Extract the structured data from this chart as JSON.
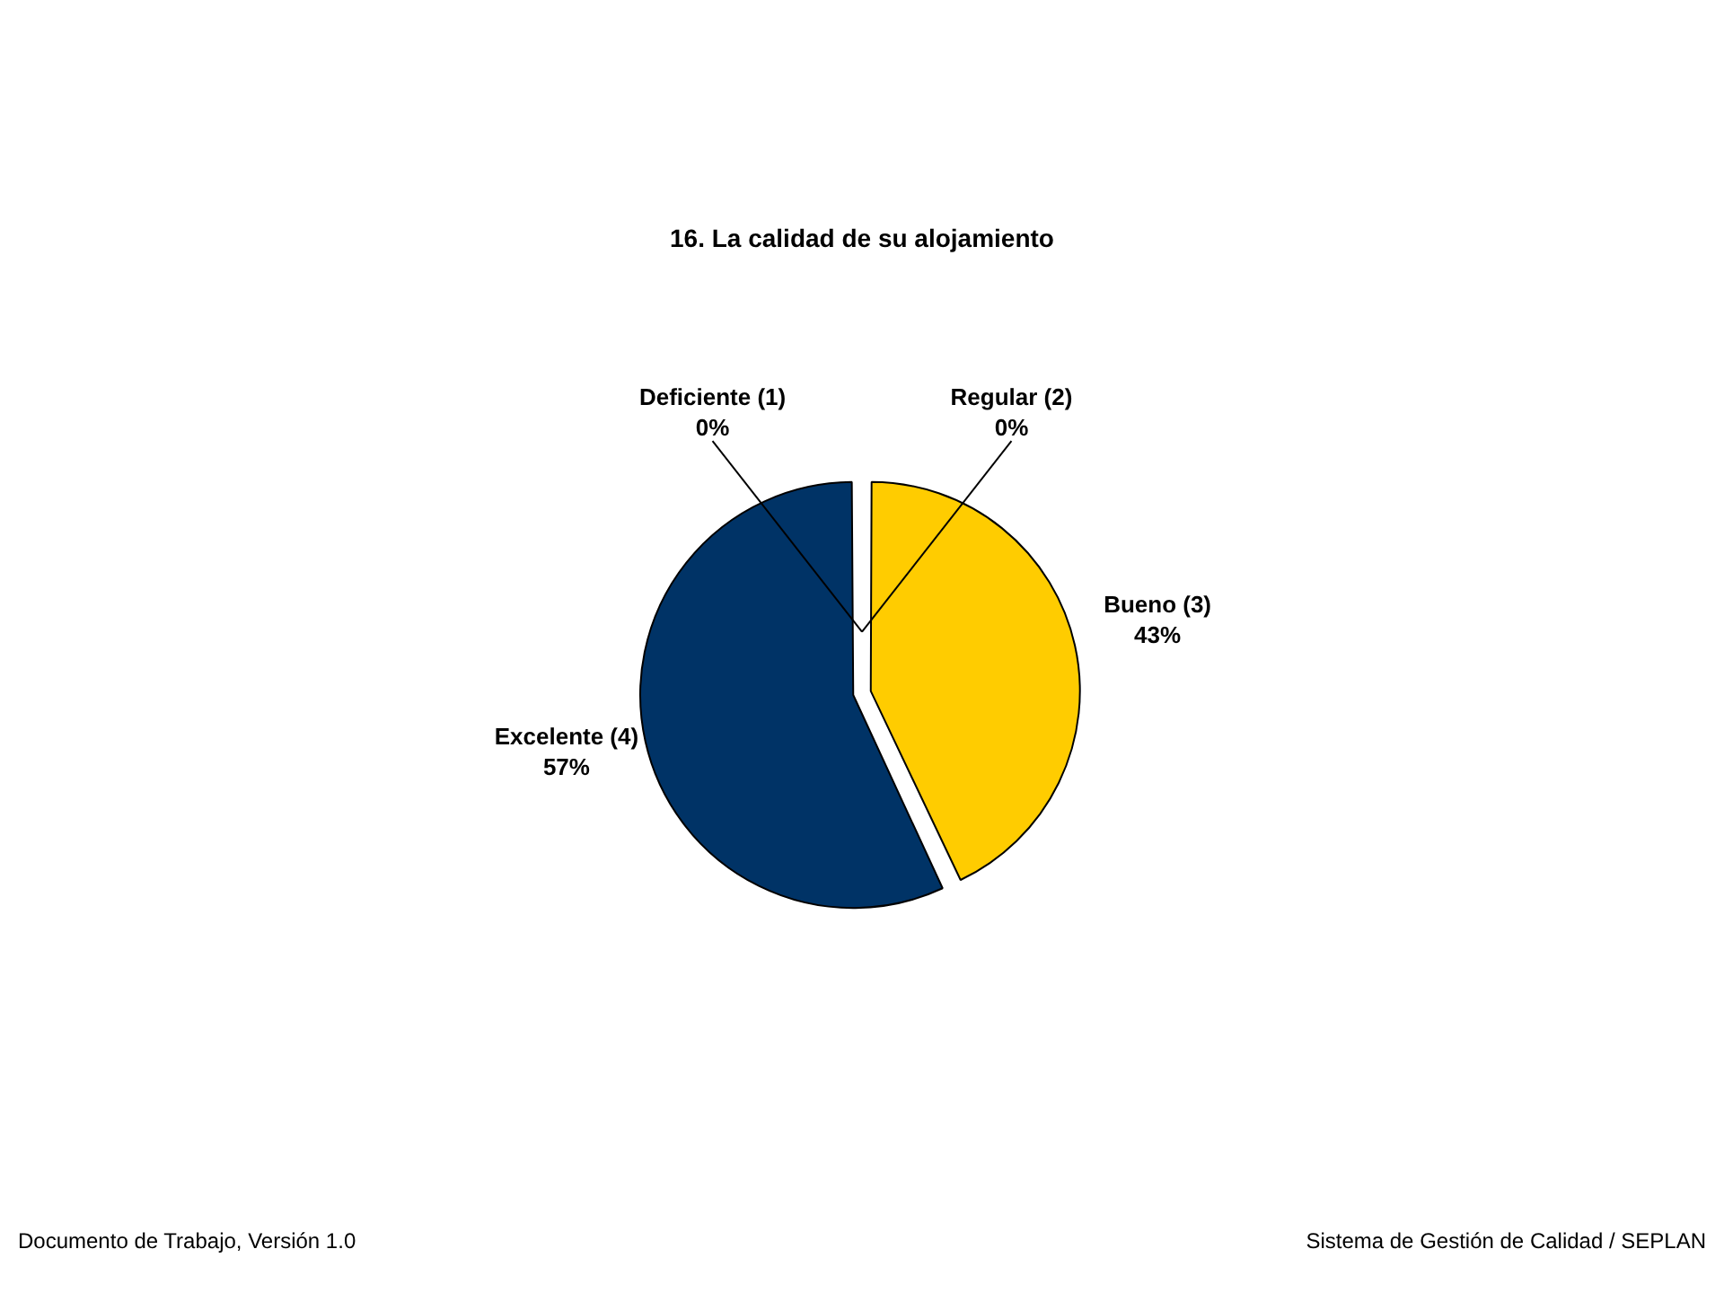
{
  "chart_data": {
    "type": "pie",
    "title": "16. La calidad de su alojamiento",
    "categories": [
      "Deficiente (1)",
      "Regular (2)",
      "Bueno (3)",
      "Excelente (4)"
    ],
    "values": [
      0,
      0,
      43,
      57
    ],
    "value_labels": [
      "0%",
      "0%",
      "43%",
      "57%"
    ],
    "colors": [
      "#9999ff",
      "#993366",
      "#ffcc00",
      "#003366"
    ],
    "legend": false,
    "annotations": [
      "Documento de Trabajo, Versión 1.0",
      "Sistema de Gestión de Calidad / SEPLAN"
    ]
  }
}
